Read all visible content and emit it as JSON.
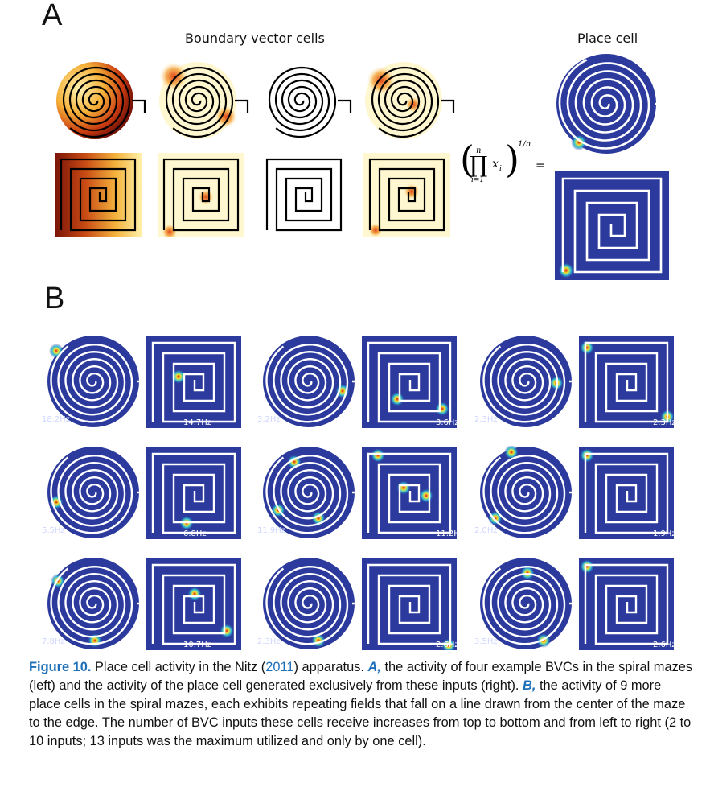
{
  "panel_a": {
    "letter": "A",
    "bvc_heading": "Boundary vector cells",
    "place_heading": "Place cell",
    "formula": {
      "upper_limit": "n",
      "lower_limit": "i=1",
      "product_symbol": "∏",
      "variable": "x",
      "subscript": "i",
      "exponent": "1/n",
      "equals": "="
    }
  },
  "panel_b": {
    "letter": "B",
    "cells": [
      {
        "spiral_rate": "18.2Hz",
        "square_rate": "14.7Hz"
      },
      {
        "spiral_rate": "3.2Hz",
        "square_rate": "3.6Hz"
      },
      {
        "spiral_rate": "2.3Hz",
        "square_rate": "2.3Hz"
      },
      {
        "spiral_rate": "5.5Hz",
        "square_rate": "6.8Hz"
      },
      {
        "spiral_rate": "11.9Hz",
        "square_rate": "11.2Hz"
      },
      {
        "spiral_rate": "2.0Hz",
        "square_rate": "1.9Hz"
      },
      {
        "spiral_rate": "7.8Hz",
        "square_rate": "10.7Hz"
      },
      {
        "spiral_rate": "2.3Hz",
        "square_rate": "2.6Hz"
      },
      {
        "spiral_rate": "3.5Hz",
        "square_rate": "2.6Hz"
      }
    ]
  },
  "caption": {
    "label": "Figure 10.",
    "text_1": " Place cell activity in the Nitz (",
    "year": "2011",
    "text_2": ") apparatus. ",
    "a_label": "A,",
    "text_3": " the activity of four example BVCs in the spiral mazes (left) and the activity of the place cell generated exclusively from these inputs (right). ",
    "b_label": "B,",
    "text_4": " the activity of 9 more place cells in the spiral mazes, each exhibits repeating fields that fall on a line drawn from the center of the maze to the edge. The number of BVC inputs these cells receive increases from top to bottom and from left to right (2 to 10 inputs; 13 inputs was the maximum utilized and only by one cell)."
  },
  "colors": {
    "maze_blue": "#2b3a9c",
    "bvc_light": "#fff7cf",
    "bvc_dark_red": "#8a1a0c",
    "caption_blue": "#1d6fb8"
  }
}
